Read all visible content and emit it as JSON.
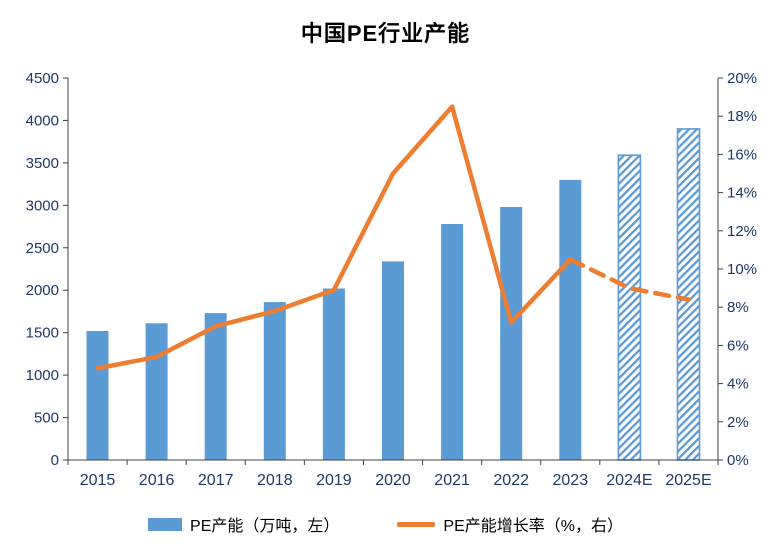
{
  "title": "中国PE行业产能",
  "legend": {
    "bar_label": "PE产能（万吨，左）",
    "line_label": "PE产能增长率（%，右）"
  },
  "colors": {
    "bar": "#5B9BD5",
    "line": "#ED7D31",
    "axis_text": "#1F3864",
    "axis_line": "#404040",
    "title_text": "#000000",
    "background": "#FFFFFF"
  },
  "chart_data": {
    "type": "combo-bar-line",
    "title": "中国PE行业产能",
    "categories": [
      "2015",
      "2016",
      "2017",
      "2018",
      "2019",
      "2020",
      "2021",
      "2022",
      "2023",
      "2024E",
      "2025E"
    ],
    "series": [
      {
        "name": "PE产能（万吨，左）",
        "type": "bar",
        "axis": "left",
        "values": [
          1520,
          1610,
          1730,
          1860,
          2020,
          2340,
          2780,
          2980,
          3300,
          3590,
          3900
        ],
        "hatched_from_index": 9
      },
      {
        "name": "PE产能增长率（%，右）",
        "type": "line",
        "axis": "right",
        "values": [
          4.8,
          5.4,
          7.0,
          7.8,
          8.9,
          15.0,
          18.5,
          7.2,
          10.5,
          9.0,
          8.4
        ],
        "dashed_from_index": 8
      }
    ],
    "left_axis": {
      "min": 0,
      "max": 4500,
      "step": 500,
      "ticks_top_to_bottom": [
        "4500",
        "4000",
        "3500",
        "3000",
        "2500",
        "2000",
        "1500",
        "1000",
        "500",
        "0"
      ]
    },
    "right_axis": {
      "min": 0,
      "max": 20,
      "step": 2,
      "suffix": "%",
      "ticks_top_to_bottom": [
        "20%",
        "18%",
        "16%",
        "14%",
        "12%",
        "10%",
        "8%",
        "6%",
        "4%",
        "2%",
        "0%"
      ]
    },
    "grid": false,
    "legend_position": "bottom"
  }
}
